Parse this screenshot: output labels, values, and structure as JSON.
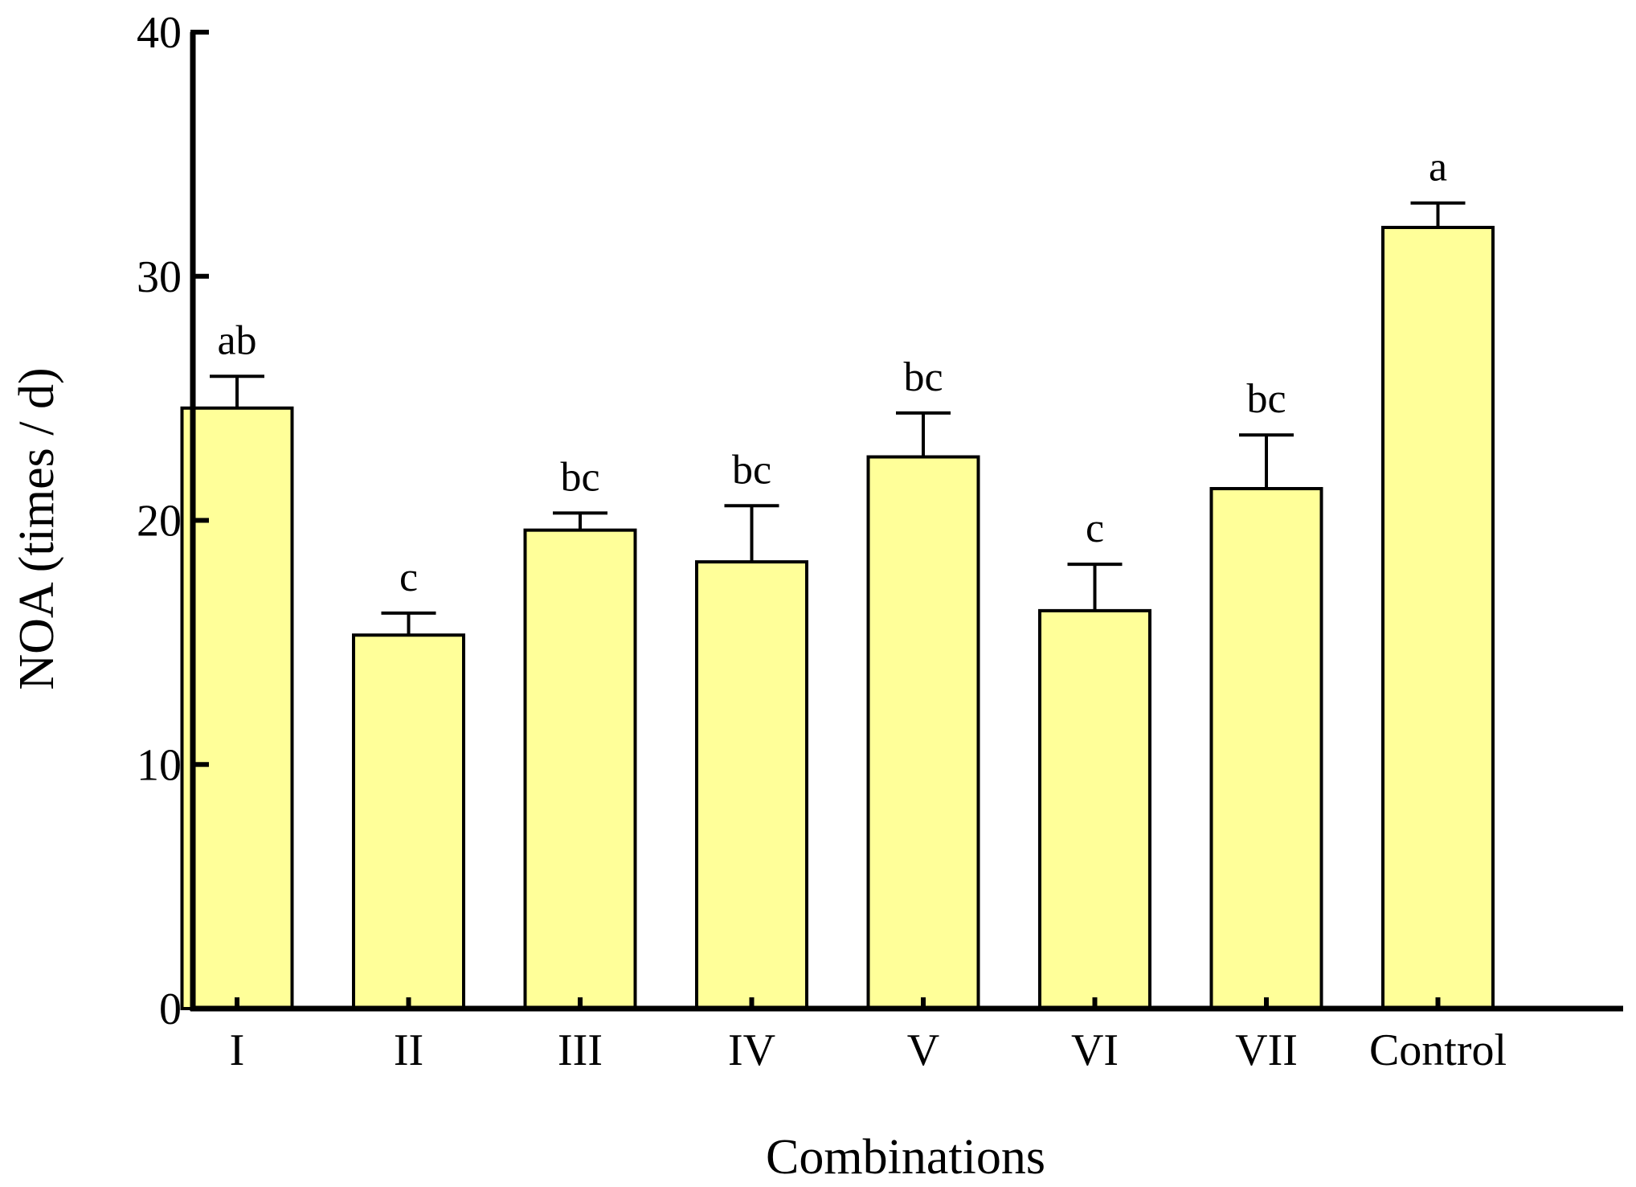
{
  "chart_data": {
    "type": "bar",
    "title": "",
    "xlabel": "Combinations",
    "ylabel": "NOA (times / d)",
    "categories": [
      "I",
      "II",
      "III",
      "IV",
      "V",
      "VI",
      "VII",
      "Control"
    ],
    "values": [
      24.6,
      15.3,
      19.6,
      18.3,
      22.6,
      16.3,
      21.3,
      32.0
    ],
    "errors": [
      1.3,
      0.9,
      0.7,
      2.3,
      1.8,
      1.9,
      2.2,
      1.0
    ],
    "significance_labels": [
      "ab",
      "c",
      "bc",
      "bc",
      "bc",
      "c",
      "bc",
      "a"
    ],
    "ylim": [
      0,
      40
    ],
    "yticks": [
      0,
      10,
      20,
      30,
      40
    ],
    "grid": false,
    "legend": "none",
    "colors": {
      "bar_fill": "#FFFF99",
      "bar_stroke": "#000000",
      "axis": "#000000"
    }
  }
}
